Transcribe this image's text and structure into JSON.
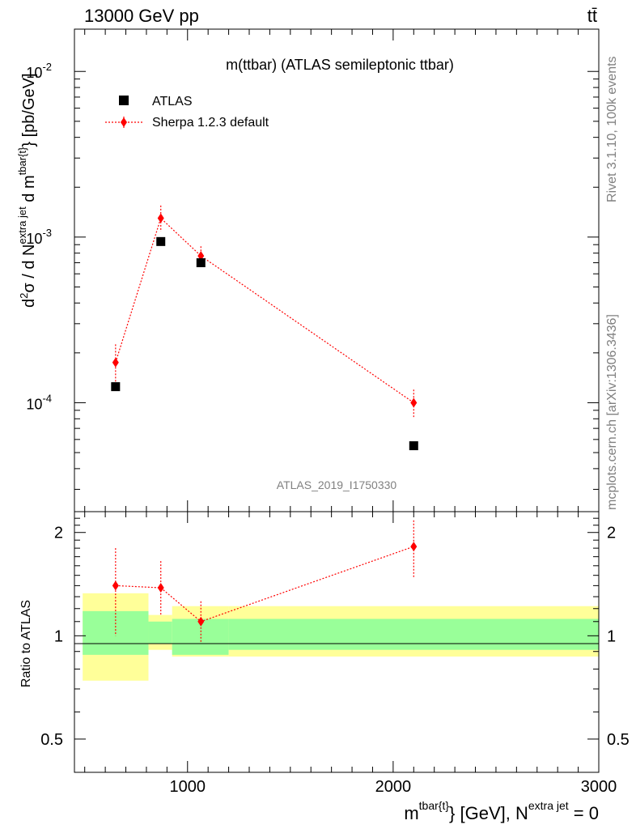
{
  "header": {
    "left": "13000 GeV pp",
    "right": "tt̄"
  },
  "side": {
    "rivet": "Rivet 3.1.10,  100k events",
    "mcplots": "mcplots.cern.ch [arXiv:1306.3436]"
  },
  "chart_data": [
    {
      "type": "scatter",
      "title": "m(ttbar) (ATLAS semileptonic ttbar)",
      "watermark": "ATLAS_2019_I1750330",
      "ylabel": "d²σ / d N^{extra jet} d m^{tbar{t}} [pb/GeV]",
      "yscale": "log",
      "ylim": [
        2.2e-05,
        0.018
      ],
      "xlim": [
        450,
        3000
      ],
      "ytick_labels": [
        "10^-4",
        "10^-3",
        "10^-2"
      ],
      "legend_position": "top-left",
      "series": [
        {
          "name": "ATLAS",
          "color": "#000000",
          "marker": "square",
          "points": [
            {
              "x": 650,
              "y": 0.000125
            },
            {
              "x": 870,
              "y": 0.00094
            },
            {
              "x": 1065,
              "y": 0.0007
            },
            {
              "x": 2100,
              "y": 5.5e-05
            }
          ]
        },
        {
          "name": "Sherpa 1.2.3 default",
          "color": "#ff0000",
          "marker": "diamond",
          "line": "dotted",
          "points": [
            {
              "x": 650,
              "y": 0.000175,
              "ylo": 0.000125,
              "yhi": 0.000225
            },
            {
              "x": 870,
              "y": 0.0013,
              "ylo": 0.00108,
              "yhi": 0.00155
            },
            {
              "x": 1065,
              "y": 0.00077,
              "ylo": 0.00066,
              "yhi": 0.00088
            },
            {
              "x": 2100,
              "y": 0.0001,
              "ylo": 8.2e-05,
              "yhi": 0.00012
            }
          ]
        }
      ]
    },
    {
      "type": "scatter",
      "ylabel": "Ratio to ATLAS",
      "xlabel": "m^{tbar{t}} [GeV], N^{extra jet} = 0",
      "yscale": "log",
      "ylim": [
        0.4,
        2.3
      ],
      "xlim": [
        450,
        3000
      ],
      "ytick_labels": [
        "0.5",
        "1",
        "2"
      ],
      "xtick_labels": [
        "1000",
        "2000",
        "3000"
      ],
      "bands": [
        {
          "x0": 490,
          "x1": 810,
          "green": [
            0.88,
            1.18
          ],
          "yellow": [
            0.74,
            1.33
          ]
        },
        {
          "x0": 810,
          "x1": 925,
          "green": [
            0.95,
            1.1
          ],
          "yellow": [
            0.91,
            1.15
          ]
        },
        {
          "x0": 925,
          "x1": 1200,
          "green": [
            0.88,
            1.12
          ],
          "yellow": [
            0.87,
            1.22
          ]
        },
        {
          "x0": 1200,
          "x1": 3000,
          "green": [
            0.91,
            1.12
          ],
          "yellow": [
            0.87,
            1.22
          ]
        }
      ],
      "series": [
        {
          "name": "Sherpa 1.2.3 default",
          "color": "#ff0000",
          "points": [
            {
              "x": 650,
              "y": 1.4,
              "ylo": 1.0,
              "yhi": 1.8
            },
            {
              "x": 870,
              "y": 1.38,
              "ylo": 1.15,
              "yhi": 1.65
            },
            {
              "x": 1065,
              "y": 1.1,
              "ylo": 0.95,
              "yhi": 1.26
            },
            {
              "x": 2100,
              "y": 1.82,
              "ylo": 1.48,
              "yhi": 2.17
            }
          ]
        }
      ]
    }
  ]
}
